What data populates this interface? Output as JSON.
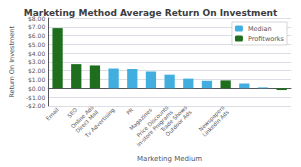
{
  "chart_data": {
    "type": "bar",
    "title": "Marketing Method Average Return On Investment",
    "xlabel": "Marketing Medium",
    "ylabel": "Return On Investment",
    "categories": [
      "Email",
      "SEO",
      "Online Ads\nDirect Mail",
      "Tv Advertising",
      "PR",
      "Magazines",
      "Price Discounts\nIn-store Programs",
      "Trade Shows\nOutdoor Ads",
      null,
      "Newspapers\nLinkedIn Ads",
      null,
      null,
      null
    ],
    "series": [
      {
        "name": "Median",
        "color": "#42aee0",
        "values": [
          null,
          null,
          null,
          2.25,
          2.2,
          1.9,
          1.55,
          1.1,
          0.85,
          null,
          0.55,
          0.1,
          null
        ]
      },
      {
        "name": "Profitworks",
        "color": "#1e6e1e",
        "values": [
          6.85,
          2.75,
          2.6,
          null,
          null,
          null,
          null,
          null,
          null,
          0.9,
          null,
          null,
          -0.2
        ]
      }
    ],
    "ylim": [
      -2.0,
      8.0
    ],
    "yticks": [
      {
        "value": -2.0,
        "label": "-$2.00"
      },
      {
        "value": -1.0,
        "label": "-$1.00"
      },
      {
        "value": 0.0,
        "label": "$0.00"
      },
      {
        "value": 1.0,
        "label": "$1.00"
      },
      {
        "value": 2.0,
        "label": "$2.00"
      },
      {
        "value": 3.0,
        "label": "$3.00"
      },
      {
        "value": 4.0,
        "label": "$4.00"
      },
      {
        "value": 5.0,
        "label": "$5.00"
      },
      {
        "value": 6.0,
        "label": "$6.00"
      },
      {
        "value": 7.0,
        "label": "$7.00"
      },
      {
        "value": 8.0,
        "label": "$8.00"
      }
    ],
    "grid": true,
    "legend": "upper right"
  }
}
